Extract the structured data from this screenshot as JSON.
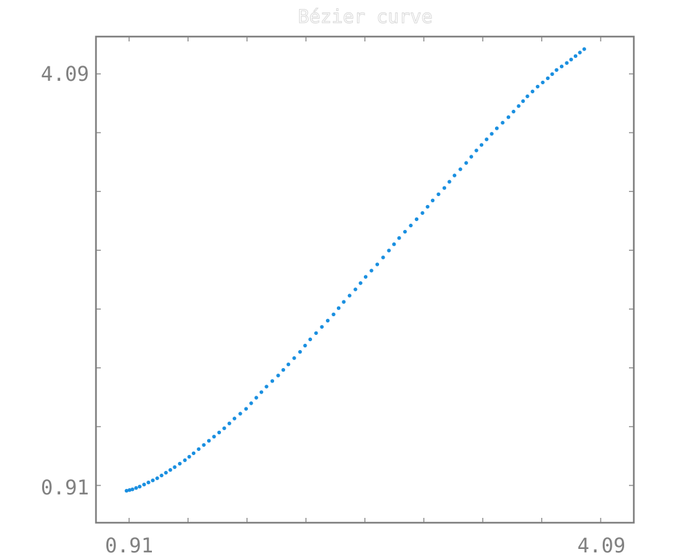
{
  "chart_data": {
    "type": "scatter",
    "title": "Bézier curve",
    "xlabel": "",
    "ylabel": "",
    "xlim": [
      0.7,
      4.39
    ],
    "ylim": [
      0.68,
      4.18
    ],
    "x_tick_labels": [
      "0.91",
      "4.09"
    ],
    "y_tick_labels": [
      "0.91",
      "4.09"
    ],
    "marker_color": "#1a8fe0",
    "frame_color": "#808080",
    "grid": false,
    "points": {
      "x": [
        0.91,
        0.95,
        1.0,
        1.06,
        1.12,
        1.18,
        1.24,
        1.31,
        1.37,
        1.44,
        1.51,
        1.58,
        1.65,
        1.73,
        1.8,
        1.87,
        1.95,
        2.02,
        2.1,
        2.17,
        2.25,
        2.33,
        2.4,
        2.48,
        2.55,
        2.63,
        2.71,
        2.78,
        2.86,
        2.94,
        3.01,
        3.09,
        3.16,
        3.24,
        3.31,
        3.38,
        3.45,
        3.53,
        3.6,
        3.66,
        3.73,
        3.8,
        3.86,
        3.93,
        3.99,
        4.05
      ],
      "y": [
        0.91,
        0.92,
        0.94,
        0.97,
        1.0,
        1.04,
        1.08,
        1.13,
        1.18,
        1.24,
        1.3,
        1.36,
        1.43,
        1.5,
        1.58,
        1.66,
        1.74,
        1.82,
        1.91,
        2.0,
        2.09,
        2.18,
        2.27,
        2.36,
        2.45,
        2.54,
        2.64,
        2.73,
        2.82,
        2.91,
        3.0,
        3.09,
        3.18,
        3.27,
        3.36,
        3.44,
        3.52,
        3.6,
        3.68,
        3.75,
        3.82,
        3.88,
        3.94,
        3.99,
        4.04,
        4.09
      ]
    }
  }
}
